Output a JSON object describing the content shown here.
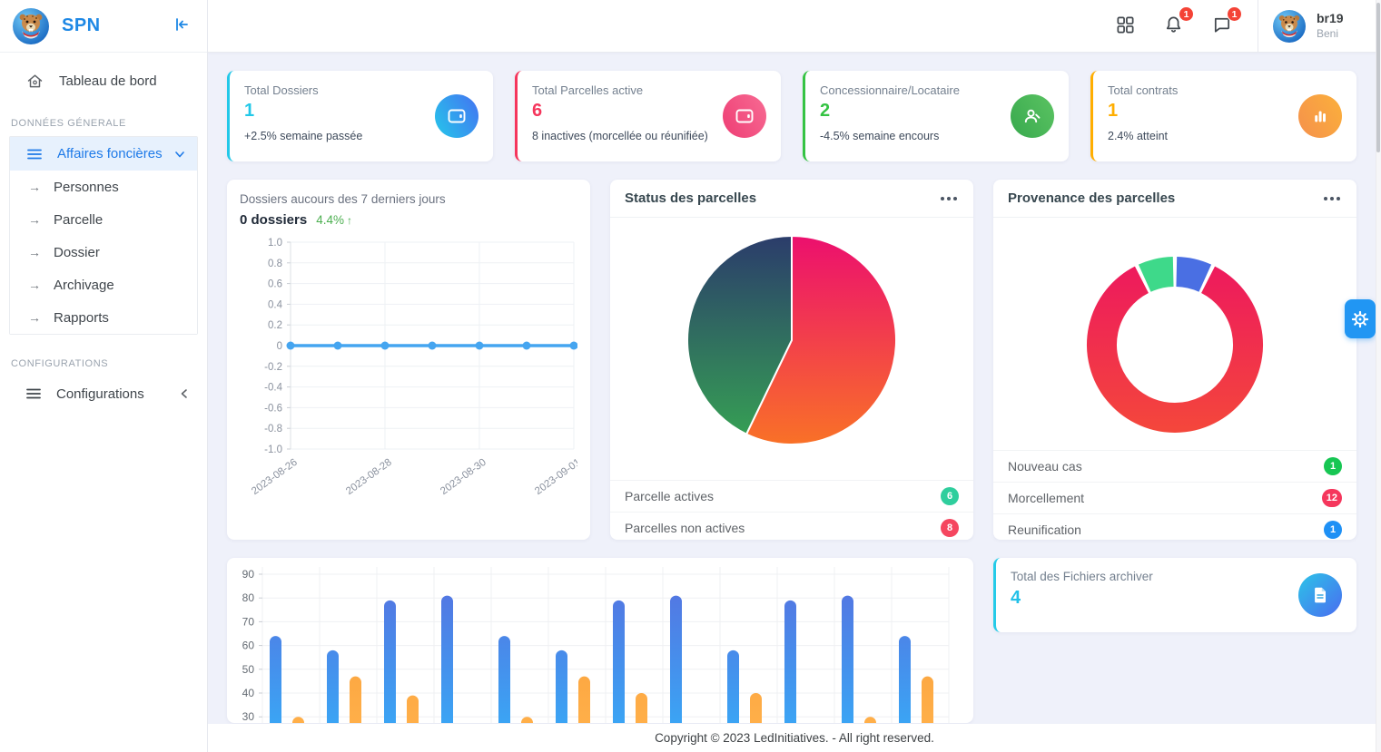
{
  "app": {
    "name": "SPN"
  },
  "sidebar": {
    "dashboard_label": "Tableau de bord",
    "section_general": "DONNÉES GÉNERALE",
    "group_affaires": "Affaires foncières",
    "sub_items": [
      {
        "label": "Personnes"
      },
      {
        "label": "Parcelle"
      },
      {
        "label": "Dossier"
      },
      {
        "label": "Archivage"
      },
      {
        "label": "Rapports"
      }
    ],
    "section_config": "CONFIGURATIONS",
    "config_label": "Configurations"
  },
  "header": {
    "bell_badge": "1",
    "chat_badge": "1",
    "user_name": "br19",
    "user_location": "Beni"
  },
  "stat_cards": [
    {
      "label": "Total Dossiers",
      "value": "1",
      "caption": "+2.5% semaine passée",
      "accent": "#22C8E8",
      "icon": "wallet-icon"
    },
    {
      "label": "Total Parcelles active",
      "value": "6",
      "caption": "8 inactives (morcellée ou réunifiée)",
      "accent": "#F5365C",
      "icon": "wallet-icon"
    },
    {
      "label": "Concessionnaire/Locataire",
      "value": "2",
      "caption": "-4.5% semaine encours",
      "accent": "#35C343",
      "icon": "person-icon"
    },
    {
      "label": "Total contrats",
      "value": "1",
      "caption": "2.4% atteint",
      "accent": "#FFAE00",
      "icon": "bar-chart-icon"
    }
  ],
  "line_card": {
    "title": "Dossiers aucours des 7 derniers jours",
    "subtitle": "0 dossiers",
    "delta": "4.4%"
  },
  "pie_card": {
    "title": "Status des parcelles",
    "legend": [
      {
        "label": "Parcelle actives",
        "value": "6",
        "badge_color": "#2FCE9D"
      },
      {
        "label": "Parcelles non actives",
        "value": "8",
        "badge_color": "#F5465F"
      }
    ]
  },
  "donut_card": {
    "title": "Provenance des parcelles",
    "legend": [
      {
        "label": "Nouveau cas",
        "value": "1",
        "badge_color": "#17C653"
      },
      {
        "label": "Morcellement",
        "value": "12",
        "badge_color": "#F5365C"
      },
      {
        "label": "Reunification",
        "value": "1",
        "badge_color": "#1E90F5"
      }
    ]
  },
  "archive_card": {
    "label": "Total des Fichiers archiver",
    "value": "4",
    "accent": "#22C0E8"
  },
  "footer": {
    "copyright": "Copyright © 2023 LedInitiatives. - All right reserved."
  },
  "chart_data": [
    {
      "type": "line",
      "title": "Dossiers aucours des 7 derniers jours",
      "x": [
        "2023-08-26",
        "2023-08-27",
        "2023-08-28",
        "2023-08-29",
        "2023-08-30",
        "2023-08-31",
        "2023-09-01"
      ],
      "values": [
        0,
        0,
        0,
        0,
        0,
        0,
        0
      ],
      "labeled_indices": [
        0,
        2,
        4,
        6
      ],
      "labeled_ticks": [
        "2023-08-26",
        "2023-08-28",
        "2023-08-30",
        "2023-09-01"
      ],
      "ylim": [
        -1,
        1
      ],
      "ytick_step": 0.2,
      "line_color": "#45A5F0",
      "grid": true,
      "legend_position": "none"
    },
    {
      "type": "pie",
      "title": "Status des parcelles",
      "labels": [
        "Parcelles non actives",
        "Parcelle actives"
      ],
      "values": [
        8,
        6
      ],
      "colors": [
        [
          "#EC0F6E",
          "#F97127"
        ],
        [
          "#2B3C6B",
          "#36A353"
        ]
      ],
      "start": "top",
      "direction": "clockwise"
    },
    {
      "type": "donut",
      "title": "Provenance des parcelles",
      "labels": [
        "Reunification",
        "Morcellement",
        "Nouveau cas"
      ],
      "values": [
        1,
        12,
        1
      ],
      "colors": [
        [
          "#4A6FE3",
          "#4A6FE3"
        ],
        [
          "#ED175F",
          "#F4473B"
        ],
        [
          "#3ED98A",
          "#3ED98A"
        ]
      ],
      "start": "top",
      "direction": "clockwise"
    },
    {
      "type": "bar",
      "categories_count": 12,
      "series": [
        {
          "name": "serie-bleue",
          "colors": [
            "#5671E0",
            "#3BA4F4"
          ],
          "values": [
            64,
            58,
            79,
            81,
            64,
            58,
            79,
            81,
            58,
            79,
            81,
            64
          ]
        },
        {
          "name": "serie-orange",
          "colors": [
            "#F79A35",
            "#FFAF49"
          ],
          "values": [
            30,
            47,
            39,
            null,
            30,
            47,
            40,
            null,
            40,
            null,
            30,
            47
          ]
        }
      ],
      "yticks": [
        90,
        80,
        70,
        60,
        50,
        40,
        30
      ],
      "note": "chart clipped by viewport bottom; null = bar hidden below the visible cut"
    }
  ]
}
